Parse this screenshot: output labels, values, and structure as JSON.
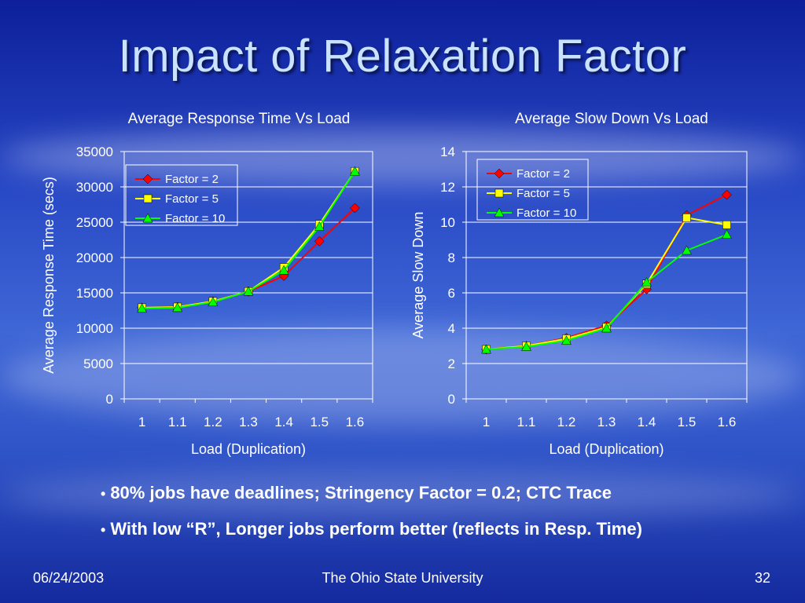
{
  "slide": {
    "title": "Impact of Relaxation Factor",
    "bullets": [
      "80% jobs have deadlines; Stringency Factor = 0.2; CTC Trace",
      "With low “R”, Longer jobs perform better (reflects in Resp. Time)"
    ],
    "footer": {
      "date": "06/24/2003",
      "organization": "The Ohio State University",
      "page_number": "32"
    }
  },
  "colors": {
    "factor_2": "#ff0000",
    "factor_5": "#ffff00",
    "factor_10": "#00ff00"
  },
  "chart_data": [
    {
      "type": "line",
      "title": "Average Response Time Vs Load",
      "xlabel": "Load (Duplication)",
      "ylabel": "Average Response Time (secs)",
      "categories": [
        "1",
        "1.1",
        "1.2",
        "1.3",
        "1.4",
        "1.5",
        "1.6"
      ],
      "ylim": [
        0,
        35000
      ],
      "yticks": [
        "0",
        "5000",
        "10000",
        "15000",
        "20000",
        "25000",
        "30000",
        "35000"
      ],
      "grid": true,
      "legend_position": "top-left",
      "series": [
        {
          "name": "Factor = 2",
          "values": [
            12900,
            13000,
            13800,
            15200,
            17400,
            22300,
            27000
          ]
        },
        {
          "name": "Factor = 5",
          "values": [
            12900,
            13000,
            13800,
            15200,
            18600,
            24700,
            32200
          ]
        },
        {
          "name": "Factor = 10",
          "values": [
            12800,
            12900,
            13700,
            15200,
            18200,
            24400,
            32200
          ]
        }
      ]
    },
    {
      "type": "line",
      "title": "Average Slow Down Vs Load",
      "xlabel": "Load (Duplication)",
      "ylabel": "Average Slow Down",
      "categories": [
        "1",
        "1.1",
        "1.2",
        "1.3",
        "1.4",
        "1.5",
        "1.6"
      ],
      "ylim": [
        0,
        14
      ],
      "yticks": [
        "0",
        "2",
        "4",
        "6",
        "8",
        "10",
        "12",
        "14"
      ],
      "grid": true,
      "legend_position": "top-left",
      "series": [
        {
          "name": "Factor = 2",
          "values": [
            2.8,
            3.0,
            3.45,
            4.15,
            6.2,
            10.4,
            11.55
          ]
        },
        {
          "name": "Factor = 5",
          "values": [
            2.8,
            3.0,
            3.4,
            4.05,
            6.5,
            10.25,
            9.85
          ]
        },
        {
          "name": "Factor = 10",
          "values": [
            2.8,
            2.95,
            3.3,
            4.0,
            6.6,
            8.4,
            9.3
          ]
        }
      ]
    }
  ]
}
